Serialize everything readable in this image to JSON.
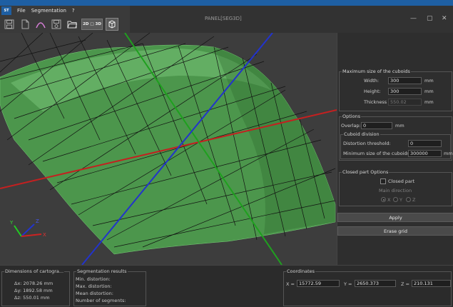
{
  "app": {
    "logo_text": "ST",
    "window_title": "PANEL[SEG3D]",
    "menu": [
      "File",
      "Segmentation",
      "?"
    ],
    "window_controls": {
      "minimize": "—",
      "maximize": "▢",
      "close": "✕"
    }
  },
  "toolbar": {
    "icons": [
      "save-icon",
      "new-file-icon",
      "curve-icon",
      "save-as-icon",
      "open-folder-icon",
      "2d-3d-toggle",
      "cube-view-icon"
    ],
    "toggle_label": "2D □ 3D"
  },
  "viewport": {
    "surface_color": "#5cb85c",
    "axis_colors": {
      "x": "#cc2222",
      "y": "#22cc22",
      "z": "#2233cc"
    },
    "triad_labels": {
      "x": "X",
      "y": "Y",
      "z": "Z"
    }
  },
  "panel": {
    "cuboid_size": {
      "title": "Maximum size of the cuboids",
      "width_label": "Width:",
      "width_value": "300",
      "width_unit": "mm",
      "height_label": "Height:",
      "height_value": "300",
      "height_unit": "mm",
      "thickness_label": "Thickness :",
      "thickness_value": "550.02",
      "thickness_unit": "mm"
    },
    "options": {
      "title": "Options",
      "overlap_label": "Overlap:",
      "overlap_value": "0",
      "overlap_unit": "mm",
      "cuboid_division_title": "Cuboid division",
      "distortion_label": "Distortion threshold:",
      "distortion_value": "0",
      "min_size_label": "Minimum size of the cuboids:",
      "min_size_value": "300000",
      "min_size_unit": "mm"
    },
    "closed_part": {
      "title": "Closed part Options",
      "checkbox_label": "Closed part",
      "checked": false,
      "direction_label": "Main direction",
      "radios": [
        "X",
        "Y",
        "Z"
      ],
      "selected": "X"
    },
    "apply_label": "Apply",
    "erase_label": "Erase grid"
  },
  "bottom": {
    "dimensions": {
      "title": "Dimensions of cartogra...",
      "dx": "Δx: 2078.26 mm",
      "dy": "Δy: 1892.58 mm",
      "dz": "Δz: 550.01 mm"
    },
    "segmentation": {
      "title": "Segmentation results",
      "min": "Min. distortion:",
      "max": "Max. distortion:",
      "mean": "Mean distortion:",
      "count": "Number of segments:"
    },
    "coordinates": {
      "title": "Coordinates",
      "x_label": "X =",
      "x_value": "15772.59",
      "y_label": "Y =",
      "y_value": "2650.373",
      "z_label": "Z =",
      "z_value": "210.131"
    }
  }
}
